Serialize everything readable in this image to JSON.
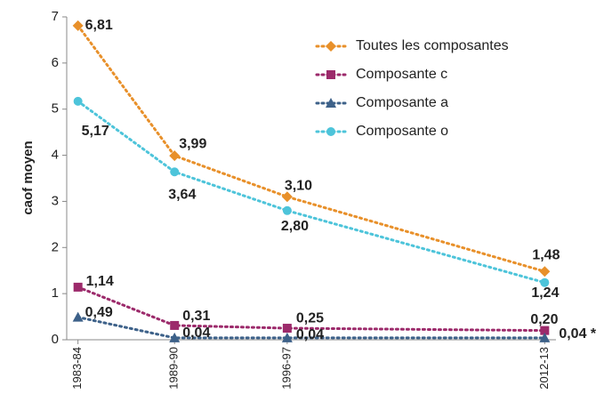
{
  "chart_data": {
    "type": "line",
    "ylabel": "caof moyen",
    "x": [
      1983,
      1989,
      1996,
      2012
    ],
    "xlim": [
      1982.3,
      2012.7
    ],
    "xticks": [
      {
        "value": 1983,
        "label": "1983-84"
      },
      {
        "value": 1989,
        "label": "1989-90"
      },
      {
        "value": 1996,
        "label": "1996-97"
      },
      {
        "value": 2012,
        "label": "2012-13"
      }
    ],
    "ylim": [
      0,
      7
    ],
    "yticks": [
      0,
      1,
      2,
      3,
      4,
      5,
      6,
      7
    ],
    "legend": "top-right",
    "series": [
      {
        "name": "Toutes les composantes",
        "color": "#e8902a",
        "marker": "diamond",
        "values": [
          6.81,
          3.99,
          3.1,
          1.48
        ],
        "value_labels": [
          "6,81",
          "3,99",
          "3,10",
          "1,48"
        ]
      },
      {
        "name": "Composante c",
        "color": "#9c2a6b",
        "marker": "square",
        "values": [
          1.14,
          0.31,
          0.25,
          0.2
        ],
        "value_labels": [
          "1,14",
          "0,31",
          "0,25",
          "0,20"
        ]
      },
      {
        "name": "Composante a",
        "color": "#3d6189",
        "marker": "triangle",
        "values": [
          0.49,
          0.04,
          0.04,
          0.04
        ],
        "value_labels": [
          "0,49",
          "0,04",
          "0,04",
          "0,04 *"
        ]
      },
      {
        "name": "Composante o",
        "color": "#4dc4da",
        "marker": "circle",
        "values": [
          5.17,
          3.64,
          2.8,
          1.24
        ],
        "value_labels": [
          "5,17",
          "3,64",
          "2,80",
          "1,24"
        ]
      }
    ]
  }
}
